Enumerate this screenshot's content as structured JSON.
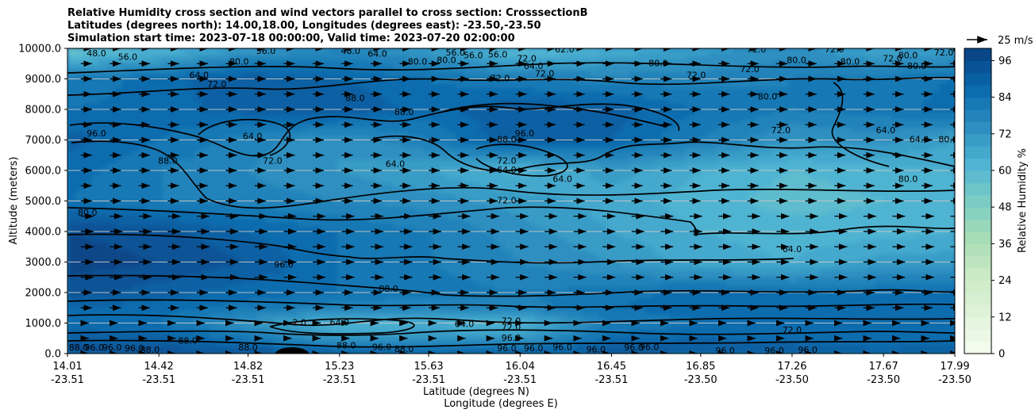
{
  "chart_data": {
    "type": "heatmap",
    "title_lines": [
      "Relative Humidity cross section and wind vectors parallel to cross section: CrosssectionB",
      "Latitudes (degrees north): 14.00,18.00, Longitudes (degrees east): -23.50,-23.50",
      "Simulation start time: 2023-07-18 00:00:00, Valid time: 2023-07-20 02:00:00"
    ],
    "ylabel": "Altitude (meters)",
    "xlabel_lat": "Latitude (degrees N)",
    "xlabel_lon": "Longitude (degrees E)",
    "y_ticks": [
      "0.0",
      "1000.0",
      "2000.0",
      "3000.0",
      "4000.0",
      "5000.0",
      "6000.0",
      "7000.0",
      "8000.0",
      "9000.0",
      "10000.0"
    ],
    "y_values": [
      0,
      1000,
      2000,
      3000,
      4000,
      5000,
      6000,
      7000,
      8000,
      9000,
      10000
    ],
    "ylim": [
      0,
      10000
    ],
    "x_ticks": [
      {
        "lat": "14.01",
        "lon": "-23.51"
      },
      {
        "lat": "14.42",
        "lon": "-23.51"
      },
      {
        "lat": "14.82",
        "lon": "-23.51"
      },
      {
        "lat": "15.23",
        "lon": "-23.51"
      },
      {
        "lat": "15.63",
        "lon": "-23.51"
      },
      {
        "lat": "16.04",
        "lon": "-23.51"
      },
      {
        "lat": "16.45",
        "lon": "-23.51"
      },
      {
        "lat": "16.85",
        "lon": "-23.50"
      },
      {
        "lat": "17.26",
        "lon": "-23.50"
      },
      {
        "lat": "17.67",
        "lon": "-23.50"
      },
      {
        "lat": "17.99",
        "lon": "-23.50"
      }
    ],
    "x_range": [
      14.01,
      17.99
    ],
    "colorbar": {
      "label": "Relative Humidity %",
      "ticks": [
        "0",
        "12",
        "24",
        "36",
        "48",
        "60",
        "72",
        "84",
        "96"
      ],
      "tick_values": [
        0,
        12,
        24,
        36,
        48,
        60,
        72,
        84,
        96
      ],
      "range": [
        0,
        100
      ],
      "levels": 25
    },
    "quiver_key": {
      "label": "25 m/s"
    },
    "contour_levels": [
      "64.0",
      "72.0",
      "80.0",
      "88.0",
      "96.0",
      "56.0",
      "48.0"
    ],
    "rh_field": {
      "lats": [
        14.01,
        14.42,
        14.82,
        15.23,
        15.63,
        16.04,
        16.45,
        16.85,
        17.26,
        17.67,
        17.99
      ],
      "alts": [
        0,
        500,
        1000,
        1500,
        2000,
        3000,
        4000,
        5000,
        6000,
        7000,
        8000,
        9000,
        10000
      ],
      "values": [
        [
          96,
          94,
          95,
          92,
          90,
          92,
          94,
          92,
          92,
          90,
          92
        ],
        [
          90,
          90,
          82,
          70,
          72,
          70,
          86,
          88,
          86,
          84,
          84
        ],
        [
          86,
          84,
          72,
          62,
          64,
          62,
          80,
          84,
          84,
          84,
          84
        ],
        [
          88,
          86,
          82,
          78,
          76,
          78,
          84,
          86,
          86,
          86,
          88
        ],
        [
          94,
          90,
          86,
          84,
          82,
          80,
          82,
          86,
          84,
          84,
          86
        ],
        [
          98,
          96,
          92,
          84,
          80,
          76,
          72,
          66,
          64,
          70,
          70
        ],
        [
          96,
          94,
          88,
          84,
          80,
          74,
          68,
          64,
          62,
          62,
          64
        ],
        [
          84,
          80,
          78,
          76,
          74,
          70,
          66,
          62,
          58,
          60,
          62
        ],
        [
          86,
          80,
          76,
          72,
          68,
          62,
          70,
          64,
          60,
          62,
          64
        ],
        [
          90,
          84,
          78,
          72,
          80,
          92,
          88,
          80,
          72,
          74,
          68
        ],
        [
          84,
          86,
          90,
          92,
          86,
          92,
          90,
          84,
          80,
          82,
          86
        ],
        [
          80,
          86,
          92,
          88,
          84,
          80,
          78,
          78,
          80,
          82,
          84
        ],
        [
          54,
          60,
          70,
          76,
          70,
          58,
          64,
          70,
          74,
          66,
          70
        ]
      ]
    },
    "contour_labels": [
      {
        "text": "48.0",
        "lat": 14.14,
        "alt": 9820
      },
      {
        "text": "56.0",
        "lat": 14.28,
        "alt": 9700
      },
      {
        "text": "64.0",
        "lat": 14.6,
        "alt": 9100
      },
      {
        "text": "72.0",
        "lat": 14.68,
        "alt": 8800
      },
      {
        "text": "80.0",
        "lat": 14.78,
        "alt": 9550
      },
      {
        "text": "56.0",
        "lat": 14.9,
        "alt": 9900
      },
      {
        "text": "48.0",
        "lat": 15.28,
        "alt": 9900
      },
      {
        "text": "64.0",
        "lat": 15.4,
        "alt": 9800
      },
      {
        "text": "80.0",
        "lat": 15.58,
        "alt": 9550
      },
      {
        "text": "80.0",
        "lat": 15.71,
        "alt": 9600
      },
      {
        "text": "56.0",
        "lat": 15.75,
        "alt": 9850
      },
      {
        "text": "56.0",
        "lat": 15.83,
        "alt": 9750
      },
      {
        "text": "56.0",
        "lat": 15.94,
        "alt": 9780
      },
      {
        "text": "72.0",
        "lat": 15.95,
        "alt": 9000
      },
      {
        "text": "72.0",
        "lat": 16.07,
        "alt": 9650
      },
      {
        "text": "64.0",
        "lat": 16.1,
        "alt": 9400
      },
      {
        "text": "72.0",
        "lat": 16.15,
        "alt": 9150
      },
      {
        "text": "62.0",
        "lat": 16.24,
        "alt": 9950
      },
      {
        "text": "80.0",
        "lat": 16.66,
        "alt": 9500
      },
      {
        "text": "72.0",
        "lat": 16.83,
        "alt": 9100
      },
      {
        "text": "72.0",
        "lat": 17.07,
        "alt": 9300
      },
      {
        "text": "72.0",
        "lat": 17.1,
        "alt": 9950
      },
      {
        "text": "72.0",
        "lat": 17.45,
        "alt": 9950
      },
      {
        "text": "80.0",
        "lat": 17.28,
        "alt": 9600
      },
      {
        "text": "80.0",
        "lat": 17.52,
        "alt": 9550
      },
      {
        "text": "72.0",
        "lat": 17.71,
        "alt": 9650
      },
      {
        "text": "80.0",
        "lat": 17.78,
        "alt": 9750
      },
      {
        "text": "80.0",
        "lat": 17.82,
        "alt": 9400
      },
      {
        "text": "72.0",
        "lat": 17.94,
        "alt": 9850
      },
      {
        "text": "80.0",
        "lat": 17.15,
        "alt": 8400
      },
      {
        "text": "88.0",
        "lat": 15.3,
        "alt": 8350
      },
      {
        "text": "88.0",
        "lat": 15.52,
        "alt": 7900
      },
      {
        "text": "96.0",
        "lat": 14.14,
        "alt": 7200
      },
      {
        "text": "64.0",
        "lat": 14.84,
        "alt": 7100
      },
      {
        "text": "96.0",
        "lat": 16.06,
        "alt": 7200
      },
      {
        "text": "88.0",
        "lat": 15.98,
        "alt": 7000
      },
      {
        "text": "72.0",
        "lat": 17.21,
        "alt": 7300
      },
      {
        "text": "64.0",
        "lat": 17.68,
        "alt": 7300
      },
      {
        "text": "64.0",
        "lat": 17.83,
        "alt": 7000
      },
      {
        "text": "80.0",
        "lat": 17.96,
        "alt": 7000
      },
      {
        "text": "88.0",
        "lat": 14.46,
        "alt": 6300
      },
      {
        "text": "72.0",
        "lat": 14.93,
        "alt": 6300
      },
      {
        "text": "64.0",
        "lat": 15.48,
        "alt": 6200
      },
      {
        "text": "72.0",
        "lat": 15.98,
        "alt": 6300
      },
      {
        "text": "64.0",
        "lat": 15.98,
        "alt": 6000
      },
      {
        "text": "64.0",
        "lat": 16.23,
        "alt": 5700
      },
      {
        "text": "80.0",
        "lat": 17.78,
        "alt": 5700
      },
      {
        "text": "72.0",
        "lat": 15.98,
        "alt": 5000
      },
      {
        "text": "80.0",
        "lat": 14.1,
        "alt": 4600
      },
      {
        "text": "64.0",
        "lat": 17.26,
        "alt": 3400
      },
      {
        "text": "96.0",
        "lat": 14.98,
        "alt": 2900
      },
      {
        "text": "88.0",
        "lat": 15.45,
        "alt": 2100
      },
      {
        "text": "2.0",
        "lat": 15.05,
        "alt": 1000
      },
      {
        "text": "64.0",
        "lat": 15.23,
        "alt": 1000
      },
      {
        "text": "72.0",
        "lat": 16.0,
        "alt": 1050
      },
      {
        "text": "64.0",
        "lat": 15.79,
        "alt": 950
      },
      {
        "text": "72.0",
        "lat": 16.0,
        "alt": 850
      },
      {
        "text": "96.0",
        "lat": 16.0,
        "alt": 500
      },
      {
        "text": "72.0",
        "lat": 17.26,
        "alt": 750
      },
      {
        "text": "88.0",
        "lat": 15.26,
        "alt": 250
      },
      {
        "text": "96.0",
        "lat": 15.98,
        "alt": 150
      },
      {
        "text": "88.0",
        "lat": 14.06,
        "alt": 180
      },
      {
        "text": "96.0",
        "lat": 14.13,
        "alt": 180
      },
      {
        "text": "96.0",
        "lat": 14.21,
        "alt": 180
      },
      {
        "text": "96.0",
        "lat": 14.31,
        "alt": 150
      },
      {
        "text": "88.0",
        "lat": 14.38,
        "alt": 100
      },
      {
        "text": "88.0",
        "lat": 14.55,
        "alt": 400
      },
      {
        "text": "88.0",
        "lat": 14.82,
        "alt": 180
      },
      {
        "text": "96.0",
        "lat": 15.42,
        "alt": 200
      },
      {
        "text": "88.0",
        "lat": 15.52,
        "alt": 130
      },
      {
        "text": "96.0",
        "lat": 16.1,
        "alt": 160
      },
      {
        "text": "96.0",
        "lat": 16.23,
        "alt": 200
      },
      {
        "text": "96.0",
        "lat": 16.38,
        "alt": 120
      },
      {
        "text": "96.0",
        "lat": 16.55,
        "alt": 180
      },
      {
        "text": "96.0",
        "lat": 16.62,
        "alt": 200
      },
      {
        "text": "96.0",
        "lat": 16.96,
        "alt": 80
      },
      {
        "text": "96.0",
        "lat": 17.18,
        "alt": 80
      },
      {
        "text": "96.0",
        "lat": 17.33,
        "alt": 100
      }
    ]
  }
}
